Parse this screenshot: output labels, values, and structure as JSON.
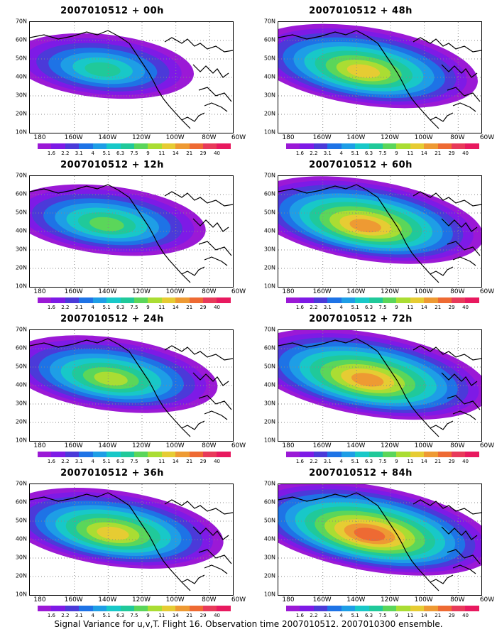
{
  "figure_title": "Signal Variance for u,v,T. Flight 16. Observation time 2007010512. 2007010300 ensemble.",
  "colorbar": {
    "labels": [
      "1.6",
      "2.2",
      "3.1",
      "4",
      "5.1",
      "6.3",
      "7.5",
      "9",
      "11",
      "14",
      "21",
      "29",
      "40"
    ],
    "colors": [
      "#9b19d6",
      "#7e1ae6",
      "#4b3ad9",
      "#1e73e6",
      "#1e9ee6",
      "#18c8c8",
      "#20c99a",
      "#5bd65a",
      "#aadd33",
      "#e6cc33",
      "#ee9a33",
      "#ee6a33",
      "#e83a5a",
      "#e8195f"
    ]
  },
  "lat_labels": [
    "70N",
    "60N",
    "50N",
    "40N",
    "30N",
    "20N",
    "10N"
  ],
  "lon_labels": [
    "180",
    "160W",
    "140W",
    "120W",
    "100W",
    "80W",
    "60W"
  ],
  "panels": [
    {
      "title": "2007010512 + 00h",
      "intensity": 0.35,
      "spread": 0.55
    },
    {
      "title": "2007010512 + 48h",
      "intensity": 0.7,
      "spread": 0.85
    },
    {
      "title": "2007010512 + 12h",
      "intensity": 0.45,
      "spread": 0.65
    },
    {
      "title": "2007010512 + 60h",
      "intensity": 0.75,
      "spread": 0.9
    },
    {
      "title": "2007010512 + 24h",
      "intensity": 0.55,
      "spread": 0.75
    },
    {
      "title": "2007010512 + 72h",
      "intensity": 0.8,
      "spread": 0.95
    },
    {
      "title": "2007010512 + 36h",
      "intensity": 0.65,
      "spread": 0.8
    },
    {
      "title": "2007010512 + 84h",
      "intensity": 0.85,
      "spread": 1.0
    }
  ]
}
